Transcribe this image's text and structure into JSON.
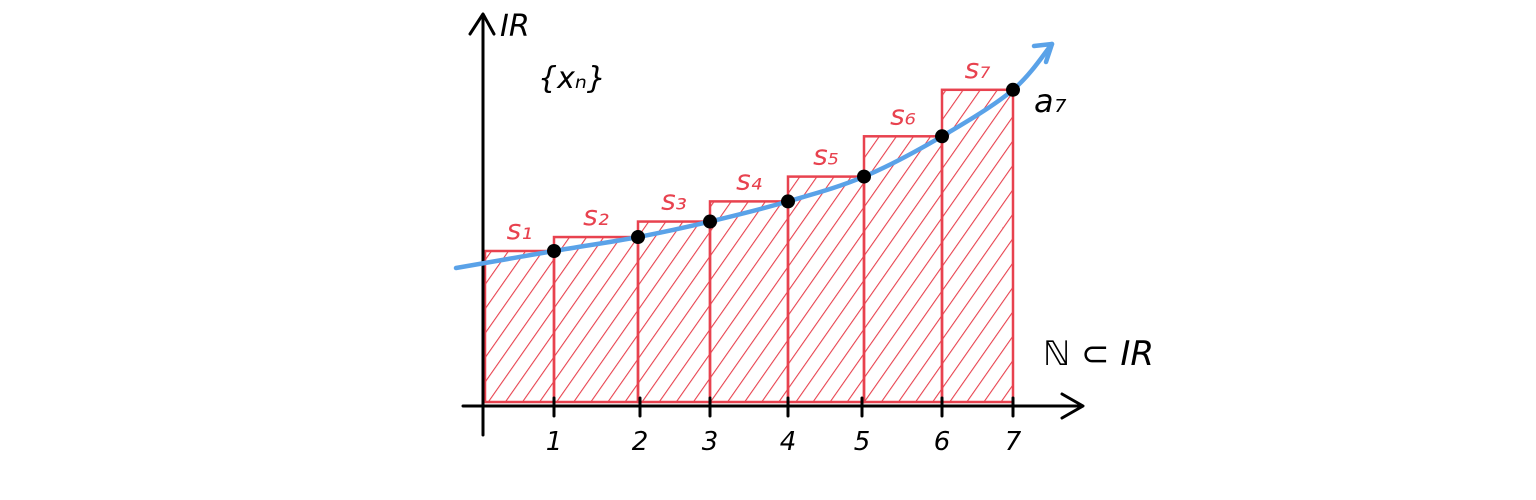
{
  "diagram": {
    "y_axis_label": "IR",
    "x_axis_label": "ℕ ⊂ IR",
    "sequence_label": "{xₙ}",
    "point_label": "a₇",
    "colors": {
      "ink": "#000000",
      "bars": "#e8424f",
      "curve": "#5aa2e8"
    }
  },
  "chart_data": {
    "type": "bar",
    "x_ticks": [
      "1",
      "2",
      "3",
      "4",
      "5",
      "6",
      "7"
    ],
    "bars": [
      {
        "label": "s₁",
        "value": 1.0
      },
      {
        "label": "s₂",
        "value": 1.09
      },
      {
        "label": "s₃",
        "value": 1.19
      },
      {
        "label": "s₄",
        "value": 1.32
      },
      {
        "label": "s₅",
        "value": 1.48
      },
      {
        "label": "s₆",
        "value": 1.74
      },
      {
        "label": "s₇",
        "value": 2.04
      }
    ],
    "points": [
      1.0,
      1.09,
      1.19,
      1.32,
      1.48,
      1.74,
      2.04
    ]
  }
}
